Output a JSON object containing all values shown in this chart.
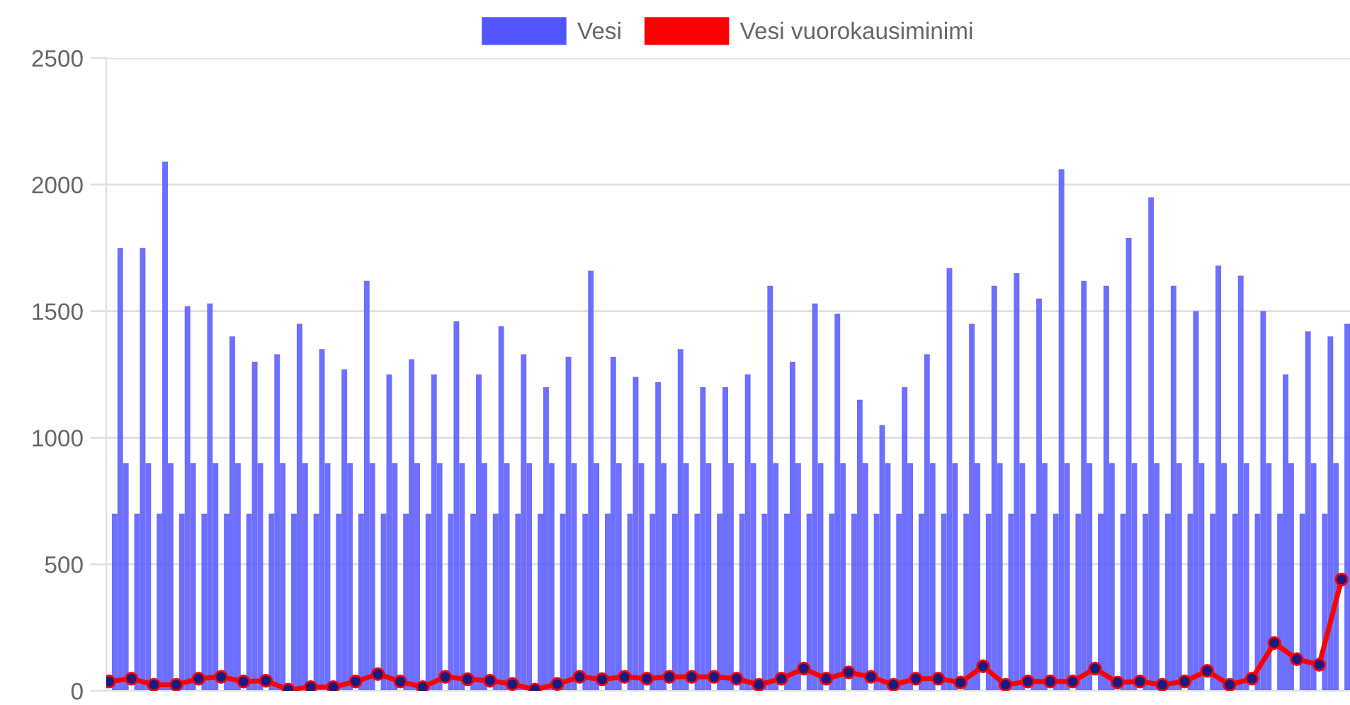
{
  "chart_data": {
    "type": "bar",
    "categories": [
      null,
      null,
      null,
      null,
      null,
      null,
      null,
      null,
      null,
      null,
      null,
      null,
      null,
      null,
      null,
      null,
      null,
      null,
      null,
      null,
      null,
      null,
      null,
      null,
      null,
      null,
      null,
      null,
      null,
      null,
      null,
      null,
      null,
      null,
      null,
      null,
      null,
      null,
      null,
      null,
      null,
      null,
      null,
      null,
      null,
      null,
      null,
      null,
      null,
      null,
      null,
      null,
      null,
      null,
      null,
      null,
      null,
      null,
      null,
      null,
      null,
      null,
      null,
      null,
      null,
      null,
      null,
      null,
      null,
      null,
      null,
      null,
      null,
      null,
      null,
      null,
      null,
      null,
      null,
      null,
      null,
      null,
      null,
      null,
      null,
      null,
      null,
      null,
      null,
      null,
      null,
      null,
      null,
      null,
      null,
      null,
      null,
      null,
      null,
      null,
      null,
      null,
      null,
      null,
      null,
      null,
      null,
      null,
      null,
      null,
      null,
      null,
      null,
      null,
      null,
      null,
      null,
      null,
      null,
      null,
      null,
      null,
      null,
      null,
      null,
      null,
      null,
      null,
      null,
      null,
      null,
      null,
      null,
      null,
      null,
      null,
      null,
      null,
      null,
      null,
      null,
      null,
      null,
      null,
      null,
      null,
      null,
      null,
      null,
      null,
      null,
      null,
      null,
      null,
      null,
      null,
      null,
      null,
      null,
      null,
      null,
      null,
      null,
      null,
      null,
      null,
      null,
      null,
      null,
      null,
      null,
      null,
      null,
      null,
      null,
      null,
      null,
      null,
      null,
      null,
      null,
      null,
      null,
      null,
      null,
      null,
      null,
      null,
      null,
      null,
      null,
      null,
      null,
      null,
      null,
      null,
      null,
      null,
      null,
      null,
      null,
      null,
      null,
      null,
      null,
      null,
      null,
      null,
      null,
      null,
      null,
      null,
      null,
      null,
      null,
      null,
      null,
      null,
      null,
      null,
      null,
      null
    ],
    "series": [
      {
        "name": "Vesi",
        "color": "#5555ff",
        "values": [
          null,
          700,
          1750,
          900,
          null,
          700,
          1750,
          900,
          null,
          700,
          2090,
          900,
          null,
          700,
          1520,
          900,
          null,
          700,
          1530,
          900,
          null,
          700,
          1400,
          900,
          null,
          700,
          1300,
          900,
          null,
          700,
          1330,
          900,
          null,
          700,
          1450,
          900,
          null,
          700,
          1350,
          900,
          null,
          700,
          1270,
          900,
          null,
          700,
          1620,
          900,
          null,
          700,
          1250,
          900,
          null,
          700,
          1310,
          900,
          null,
          700,
          1250,
          900,
          null,
          700,
          1460,
          900,
          null,
          700,
          1250,
          900,
          null,
          700,
          1440,
          900,
          null,
          700,
          1330,
          900,
          null,
          700,
          1200,
          900,
          null,
          700,
          1320,
          900,
          null,
          700,
          1660,
          900,
          null,
          700,
          1320,
          900,
          null,
          700,
          1240,
          900,
          null,
          700,
          1220,
          900,
          null,
          700,
          1350,
          900,
          null,
          700,
          1200,
          900,
          null,
          700,
          1200,
          900,
          null,
          700,
          1250,
          900,
          null,
          700,
          1600,
          900,
          null,
          700,
          1300,
          900,
          null,
          700,
          1530,
          900,
          null,
          700,
          1490,
          900,
          null,
          700,
          1150,
          900,
          null,
          700,
          1050,
          900,
          null,
          700,
          1200,
          900,
          null,
          700,
          1330,
          900,
          null,
          700,
          1670,
          900,
          null,
          700,
          1450,
          900,
          null,
          700,
          1600,
          900,
          null,
          700,
          1650,
          900,
          null,
          700,
          1550,
          900,
          null,
          700,
          2060,
          900,
          null,
          700,
          1620,
          900,
          null,
          700,
          1600,
          900,
          null,
          700,
          1790,
          900,
          null,
          700,
          1950,
          900,
          null,
          700,
          1600,
          900,
          null,
          700,
          1500,
          900,
          null,
          700,
          1680,
          900,
          null,
          700,
          1640,
          900,
          null,
          700,
          1500,
          900,
          null,
          700,
          1250,
          900,
          null,
          700,
          1420,
          900,
          null,
          700,
          1400,
          900,
          null,
          1450
        ]
      },
      {
        "name": "Vesi vuorokausiminimi",
        "type": "line",
        "color": "#ff0000",
        "marker": "circle",
        "values": [
          37,
          null,
          null,
          null,
          48,
          null,
          null,
          null,
          24,
          null,
          null,
          null,
          24,
          null,
          null,
          null,
          48,
          null,
          null,
          null,
          55,
          null,
          null,
          null,
          37,
          null,
          null,
          null,
          40,
          null,
          null,
          null,
          5,
          null,
          null,
          null,
          15,
          null,
          null,
          null,
          15,
          null,
          null,
          null,
          37,
          null,
          null,
          null,
          66,
          null,
          null,
          null,
          37,
          null,
          null,
          null,
          15,
          null,
          null,
          null,
          55,
          null,
          null,
          null,
          46,
          null,
          null,
          null,
          40,
          null,
          null,
          null,
          27,
          null,
          null,
          null,
          5,
          null,
          null,
          null,
          27,
          null,
          null,
          null,
          55,
          null,
          null,
          null,
          46,
          null,
          null,
          null,
          55,
          null,
          null,
          null,
          48,
          null,
          null,
          null,
          55,
          null,
          null,
          null,
          55,
          null,
          null,
          null,
          55,
          null,
          null,
          null,
          48,
          null,
          null,
          null,
          24,
          null,
          null,
          null,
          48,
          null,
          null,
          null,
          88,
          null,
          null,
          null,
          48,
          null,
          null,
          null,
          73,
          null,
          null,
          null,
          55,
          null,
          null,
          null,
          24,
          null,
          null,
          null,
          48,
          null,
          null,
          null,
          48,
          null,
          null,
          null,
          33,
          null,
          null,
          null,
          97,
          null,
          null,
          null,
          24,
          null,
          null,
          null,
          37,
          null,
          null,
          null,
          37,
          null,
          null,
          null,
          37,
          null,
          null,
          null,
          88,
          null,
          null,
          null,
          33,
          null,
          null,
          null,
          37,
          null,
          null,
          null,
          24,
          null,
          null,
          null,
          37,
          null,
          null,
          null,
          79,
          null,
          null,
          null,
          24,
          null,
          null,
          null,
          48,
          null,
          null,
          null,
          189,
          null,
          null,
          null,
          125,
          null,
          null,
          null,
          103,
          null,
          null,
          null,
          440,
          null
        ]
      }
    ],
    "ylim": [
      0,
      2500
    ],
    "yticks": [
      0,
      500,
      1000,
      1500,
      2000,
      2500
    ],
    "grid": "y",
    "legend": "top",
    "tick_labels": "y"
  }
}
